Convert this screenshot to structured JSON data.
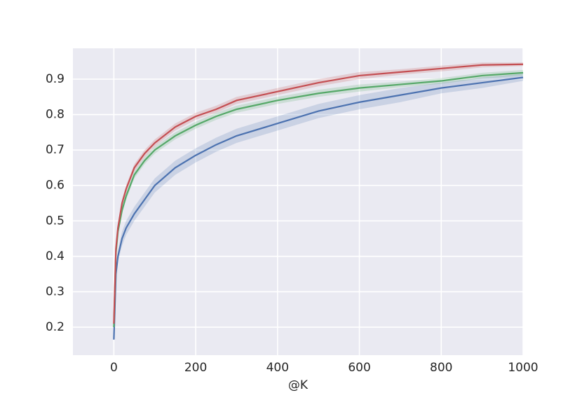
{
  "chart_data": {
    "type": "line",
    "x_label": "@K",
    "x": [
      0,
      5,
      10,
      20,
      30,
      50,
      75,
      100,
      150,
      200,
      250,
      300,
      400,
      500,
      600,
      700,
      800,
      900,
      1000
    ],
    "series": [
      {
        "color": "#4c72b0",
        "values": [
          0.165,
          0.35,
          0.4,
          0.45,
          0.48,
          0.52,
          0.56,
          0.6,
          0.65,
          0.685,
          0.715,
          0.74,
          0.775,
          0.81,
          0.835,
          0.855,
          0.875,
          0.89,
          0.905
        ],
        "lower": [
          0.16,
          0.34,
          0.385,
          0.43,
          0.46,
          0.5,
          0.54,
          0.58,
          0.63,
          0.665,
          0.695,
          0.72,
          0.755,
          0.79,
          0.815,
          0.835,
          0.86,
          0.875,
          0.895
        ],
        "upper": [
          0.17,
          0.36,
          0.415,
          0.47,
          0.5,
          0.54,
          0.58,
          0.62,
          0.67,
          0.705,
          0.735,
          0.76,
          0.795,
          0.83,
          0.855,
          0.875,
          0.89,
          0.905,
          0.915
        ]
      },
      {
        "color": "#55a868",
        "values": [
          0.2,
          0.41,
          0.47,
          0.53,
          0.57,
          0.63,
          0.67,
          0.7,
          0.74,
          0.77,
          0.795,
          0.815,
          0.84,
          0.86,
          0.875,
          0.885,
          0.895,
          0.91,
          0.918
        ],
        "lower": [
          0.19,
          0.4,
          0.46,
          0.52,
          0.56,
          0.62,
          0.66,
          0.69,
          0.73,
          0.76,
          0.785,
          0.805,
          0.83,
          0.85,
          0.865,
          0.877,
          0.887,
          0.902,
          0.91
        ],
        "upper": [
          0.21,
          0.42,
          0.48,
          0.54,
          0.58,
          0.64,
          0.68,
          0.71,
          0.75,
          0.78,
          0.805,
          0.825,
          0.85,
          0.87,
          0.885,
          0.893,
          0.903,
          0.918,
          0.926
        ]
      },
      {
        "color": "#c44e52",
        "values": [
          0.21,
          0.42,
          0.48,
          0.55,
          0.59,
          0.65,
          0.69,
          0.72,
          0.765,
          0.795,
          0.815,
          0.84,
          0.865,
          0.89,
          0.91,
          0.92,
          0.93,
          0.94,
          0.942
        ],
        "lower": [
          0.2,
          0.41,
          0.47,
          0.54,
          0.58,
          0.64,
          0.68,
          0.71,
          0.755,
          0.785,
          0.805,
          0.83,
          0.855,
          0.88,
          0.9,
          0.912,
          0.922,
          0.933,
          0.937
        ],
        "upper": [
          0.22,
          0.43,
          0.49,
          0.56,
          0.6,
          0.66,
          0.7,
          0.73,
          0.775,
          0.805,
          0.825,
          0.85,
          0.875,
          0.9,
          0.92,
          0.928,
          0.938,
          0.947,
          0.947
        ]
      }
    ],
    "xlim": [
      -100,
      1000
    ],
    "ylim": [
      0.121,
      0.987
    ],
    "xticks": [
      0,
      200,
      400,
      600,
      800,
      1000
    ],
    "yticks": [
      0.2,
      0.3,
      0.4,
      0.5,
      0.6,
      0.7,
      0.8,
      0.9
    ],
    "grid": true,
    "background": "#eaeaf2"
  }
}
